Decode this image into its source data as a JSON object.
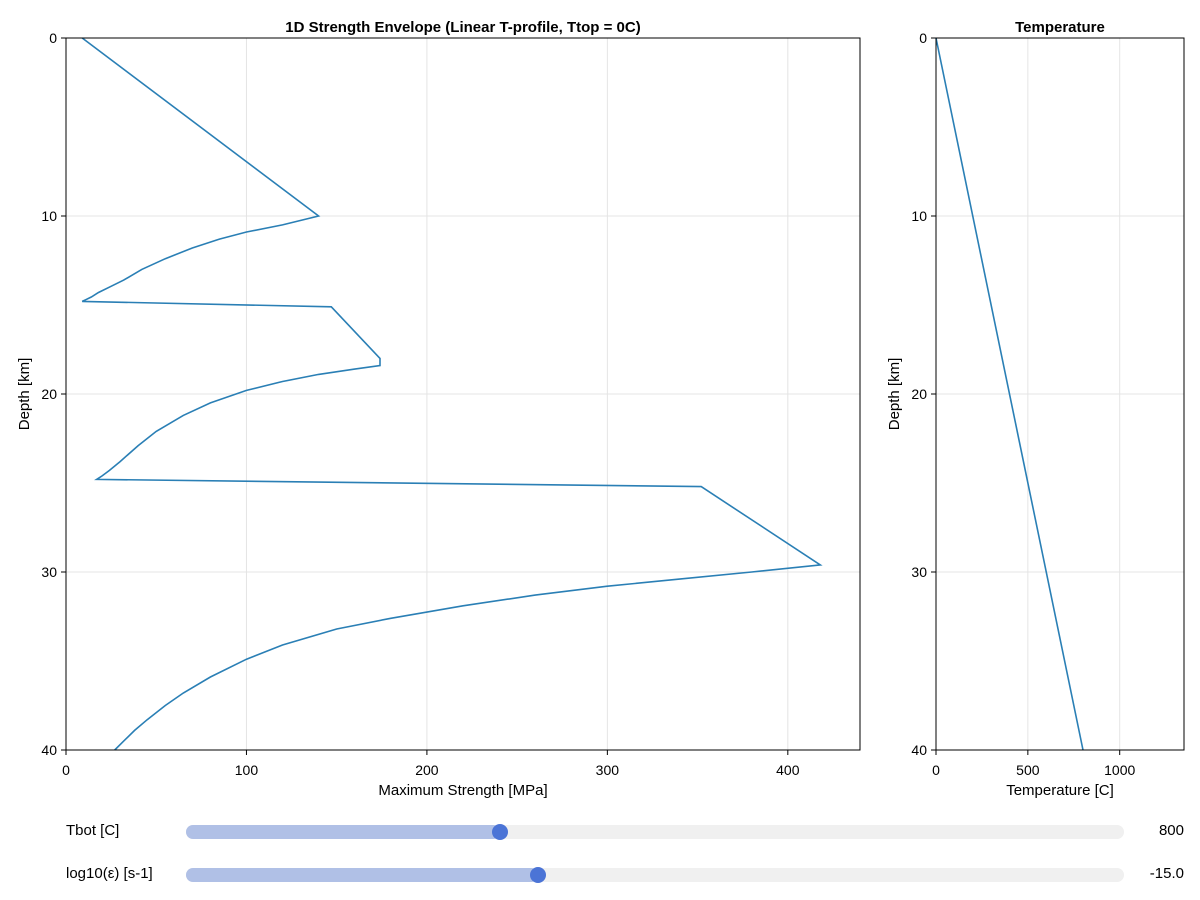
{
  "colors": {
    "series": "#2a7fb5",
    "slider_fill": "#b0c0e6",
    "slider_thumb": "#4b74d6"
  },
  "chart_data": [
    {
      "type": "line",
      "title": "1D Strength Envelope (Linear T-profile, Ttop = 0C)",
      "xlabel": "Maximum Strength [MPa]",
      "ylabel": "Depth [km]",
      "xlim": [
        0,
        440
      ],
      "ylim": [
        40,
        0
      ],
      "y_inverted": true,
      "grid": true,
      "xticks": [
        "0",
        "100",
        "200",
        "300",
        "400"
      ],
      "yticks": [
        "0",
        "10",
        "20",
        "30",
        "40"
      ],
      "series": [
        {
          "x": [
            9,
            140,
            120,
            100,
            85,
            70,
            55,
            42,
            32,
            24,
            18,
            14,
            11,
            9,
            147,
            174,
            174,
            160,
            140,
            120,
            100,
            80,
            65,
            50,
            40,
            30,
            24,
            20,
            17,
            352,
            418,
            380,
            340,
            300,
            260,
            220,
            180,
            150,
            120,
            100,
            80,
            65,
            55,
            45,
            38,
            32,
            27
          ],
          "y": [
            0,
            10,
            10.5,
            10.9,
            11.3,
            11.8,
            12.4,
            13.0,
            13.6,
            14.0,
            14.3,
            14.55,
            14.7,
            14.8,
            15.1,
            18.0,
            18.4,
            18.6,
            18.9,
            19.3,
            19.8,
            20.5,
            21.2,
            22.1,
            22.9,
            23.8,
            24.3,
            24.6,
            24.8,
            25.2,
            29.6,
            30.0,
            30.4,
            30.8,
            31.3,
            31.9,
            32.6,
            33.2,
            34.1,
            34.9,
            35.9,
            36.8,
            37.5,
            38.3,
            38.9,
            39.5,
            40.0
          ]
        }
      ]
    },
    {
      "type": "line",
      "title": "Temperature",
      "xlabel": "Temperature [C]",
      "ylabel": "Depth [km]",
      "xlim": [
        0,
        1350
      ],
      "ylim": [
        40,
        0
      ],
      "y_inverted": true,
      "grid": true,
      "xticks": [
        "0",
        "500",
        "1000"
      ],
      "yticks": [
        "0",
        "10",
        "20",
        "30",
        "40"
      ],
      "series": [
        {
          "x": [
            0,
            800
          ],
          "y": [
            0,
            40
          ]
        }
      ]
    }
  ],
  "sliders": [
    {
      "label": "Tbot [C]",
      "value": "800",
      "fraction": 0.335
    },
    {
      "label": "log10(ε) [s-1]",
      "value": "-15.0",
      "fraction": 0.375
    }
  ]
}
